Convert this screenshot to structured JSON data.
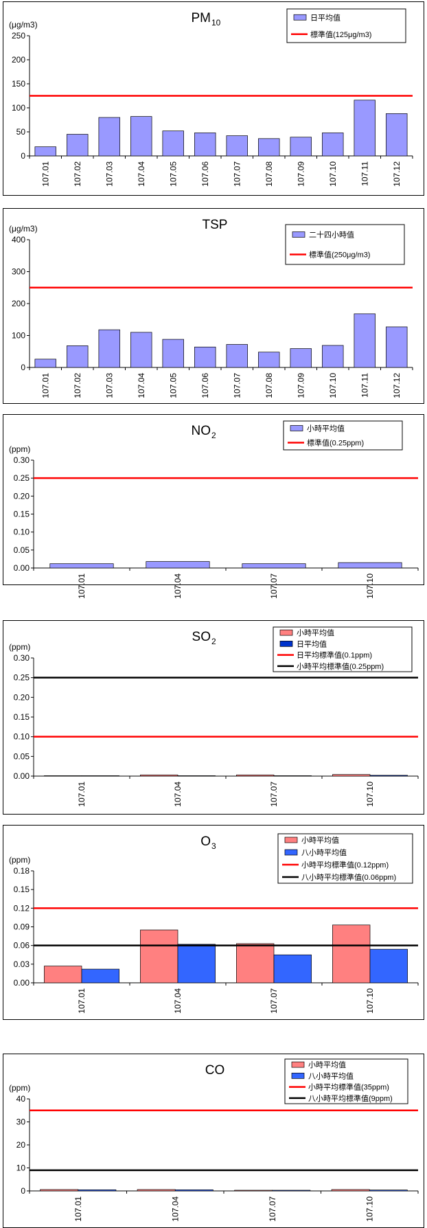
{
  "chart_data": [
    {
      "id": "pm10",
      "type": "bar",
      "title": "PM",
      "title_sub": "10",
      "unit": "(μg/m3)",
      "categories": [
        "107.01",
        "107.02",
        "107.03",
        "107.04",
        "107.05",
        "107.06",
        "107.07",
        "107.08",
        "107.09",
        "107.10",
        "107.11",
        "107.12"
      ],
      "ylim": [
        0,
        250
      ],
      "yticks": [
        "0",
        "50",
        "100",
        "150",
        "200",
        "250"
      ],
      "series": [
        {
          "name": "日平均值",
          "color": "#9999ff",
          "values": [
            19,
            45,
            80,
            82,
            52,
            48,
            42,
            36,
            39,
            48,
            116,
            88
          ]
        }
      ],
      "reference_lines": [
        {
          "name": "標準值(125μg/m3)",
          "value": 125,
          "color": "#ff0000"
        }
      ],
      "legend_position": "top-right"
    },
    {
      "id": "tsp",
      "type": "bar",
      "title": "TSP",
      "title_sub": "",
      "unit": "(μg/m3)",
      "categories": [
        "107.01",
        "107.02",
        "107.03",
        "107.04",
        "107.05",
        "107.06",
        "107.07",
        "107.08",
        "107.09",
        "107.10",
        "107.11",
        "107.12"
      ],
      "ylim": [
        0,
        400
      ],
      "yticks": [
        "0",
        "100",
        "200",
        "300",
        "400"
      ],
      "series": [
        {
          "name": "二十四小時值",
          "color": "#9999ff",
          "values": [
            26,
            68,
            118,
            110,
            88,
            64,
            72,
            48,
            59,
            69,
            168,
            127
          ]
        }
      ],
      "reference_lines": [
        {
          "name": "標準值(250μg/m3)",
          "value": 250,
          "color": "#ff0000"
        }
      ],
      "legend_position": "top-right"
    },
    {
      "id": "no2",
      "type": "bar",
      "title": "NO",
      "title_sub": "2",
      "unit": "(ppm)",
      "categories": [
        "107.01",
        "107.04",
        "107.07",
        "107.10"
      ],
      "ylim": [
        0,
        0.3
      ],
      "yticks": [
        "0.00",
        "0.05",
        "0.10",
        "0.15",
        "0.20",
        "0.25",
        "0.30"
      ],
      "series": [
        {
          "name": "小時平均值",
          "color": "#9999ff",
          "values": [
            0.012,
            0.018,
            0.012,
            0.015
          ]
        }
      ],
      "reference_lines": [
        {
          "name": "標準值(0.25ppm)",
          "value": 0.25,
          "color": "#ff0000"
        }
      ],
      "legend_position": "top-right"
    },
    {
      "id": "so2",
      "type": "bar",
      "title": "SO",
      "title_sub": "2",
      "unit": "(ppm)",
      "categories": [
        "107.01",
        "107.04",
        "107.07",
        "107.10"
      ],
      "ylim": [
        0,
        0.3
      ],
      "yticks": [
        "0.00",
        "0.05",
        "0.10",
        "0.15",
        "0.20",
        "0.25",
        "0.30"
      ],
      "series": [
        {
          "name": "小時平均值",
          "color": "#ff8080",
          "values": [
            0.001,
            0.003,
            0.003,
            0.004
          ]
        },
        {
          "name": "日平均值",
          "color": "#0033cc",
          "values": [
            0.001,
            0.001,
            0.001,
            0.002
          ]
        }
      ],
      "reference_lines": [
        {
          "name": "日平均標準值(0.1ppm)",
          "value": 0.1,
          "color": "#ff0000"
        },
        {
          "name": "小時平均標準值(0.25ppm)",
          "value": 0.25,
          "color": "#000000"
        }
      ],
      "legend_position": "top-right"
    },
    {
      "id": "o3",
      "type": "bar",
      "title": "O",
      "title_sub": "3",
      "unit": "(ppm)",
      "categories": [
        "107.01",
        "107.04",
        "107.07",
        "107.10"
      ],
      "ylim": [
        0,
        0.18
      ],
      "yticks": [
        "0.00",
        "0.03",
        "0.06",
        "0.09",
        "0.12",
        "0.15",
        "0.18"
      ],
      "series": [
        {
          "name": "小時平均值",
          "color": "#ff8080",
          "values": [
            0.027,
            0.085,
            0.063,
            0.093
          ]
        },
        {
          "name": "八小時平均值",
          "color": "#3366ff",
          "values": [
            0.022,
            0.062,
            0.045,
            0.054
          ]
        }
      ],
      "reference_lines": [
        {
          "name": "小時平均標準值(0.12ppm)",
          "value": 0.12,
          "color": "#ff0000"
        },
        {
          "name": "八小時平均標準值(0.06ppm)",
          "value": 0.06,
          "color": "#000000"
        }
      ],
      "legend_position": "top-right"
    },
    {
      "id": "co",
      "type": "bar",
      "title": "CO",
      "title_sub": "",
      "unit": "(ppm)",
      "categories": [
        "107.01",
        "107.04",
        "107.07",
        "107.10"
      ],
      "ylim": [
        0,
        40
      ],
      "yticks": [
        "0",
        "10",
        "20",
        "30",
        "40"
      ],
      "series": [
        {
          "name": "小時平均值",
          "color": "#ff8080",
          "values": [
            0.6,
            0.6,
            0.3,
            0.6
          ]
        },
        {
          "name": "八小時平均值",
          "color": "#3366ff",
          "values": [
            0.5,
            0.5,
            0.3,
            0.4
          ]
        }
      ],
      "reference_lines": [
        {
          "name": "小時平均標準值(35ppm)",
          "value": 35,
          "color": "#ff0000"
        },
        {
          "name": "八小時平均標準值(9ppm)",
          "value": 9,
          "color": "#000000"
        }
      ],
      "legend_position": "top-right"
    }
  ]
}
